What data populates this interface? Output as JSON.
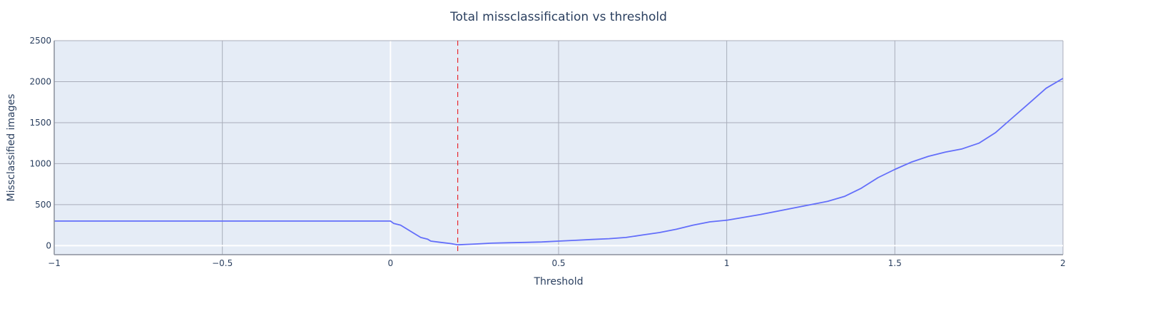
{
  "chart_data": {
    "type": "line",
    "title": "Total missclassification vs threshold",
    "xlabel": "Threshold",
    "ylabel": "Missclassified images",
    "xlim": [
      -1,
      2
    ],
    "ylim": [
      -110,
      2500
    ],
    "x_ticks": [
      -1,
      -0.5,
      0,
      0.5,
      1,
      1.5,
      2
    ],
    "x_tick_labels": [
      "−1",
      "−0.5",
      "0",
      "0.5",
      "1",
      "1.5",
      "2"
    ],
    "y_ticks": [
      0,
      500,
      1000,
      1500,
      2000,
      2500
    ],
    "y_tick_labels": [
      "0",
      "500",
      "1000",
      "1500",
      "2000",
      "2500"
    ],
    "grid": true,
    "plot_background": "#E5ECF6",
    "grid_color": "#A9ADBA",
    "zero_line_color": "#FFFFFF",
    "series": [
      {
        "color": "#636EFA",
        "x": [
          -1,
          -0.5,
          0,
          0.01,
          0.03,
          0.05,
          0.07,
          0.09,
          0.11,
          0.12,
          0.15,
          0.18,
          0.2,
          0.25,
          0.3,
          0.35,
          0.4,
          0.45,
          0.5,
          0.55,
          0.6,
          0.65,
          0.7,
          0.75,
          0.8,
          0.85,
          0.9,
          0.95,
          1.0,
          1.05,
          1.1,
          1.15,
          1.2,
          1.25,
          1.3,
          1.35,
          1.4,
          1.45,
          1.5,
          1.55,
          1.6,
          1.65,
          1.7,
          1.75,
          1.8,
          1.85,
          1.9,
          1.95,
          2.0
        ],
        "y": [
          300,
          300,
          300,
          270,
          250,
          200,
          150,
          100,
          80,
          55,
          40,
          25,
          10,
          20,
          30,
          35,
          40,
          45,
          55,
          65,
          75,
          85,
          100,
          130,
          160,
          200,
          250,
          290,
          310,
          345,
          380,
          420,
          460,
          500,
          540,
          600,
          700,
          830,
          930,
          1020,
          1090,
          1140,
          1180,
          1250,
          1380,
          1560,
          1740,
          1920,
          2040
        ]
      }
    ],
    "threshold_line": {
      "x": 0.2,
      "color": "#E8292F",
      "style": "dashed"
    }
  }
}
